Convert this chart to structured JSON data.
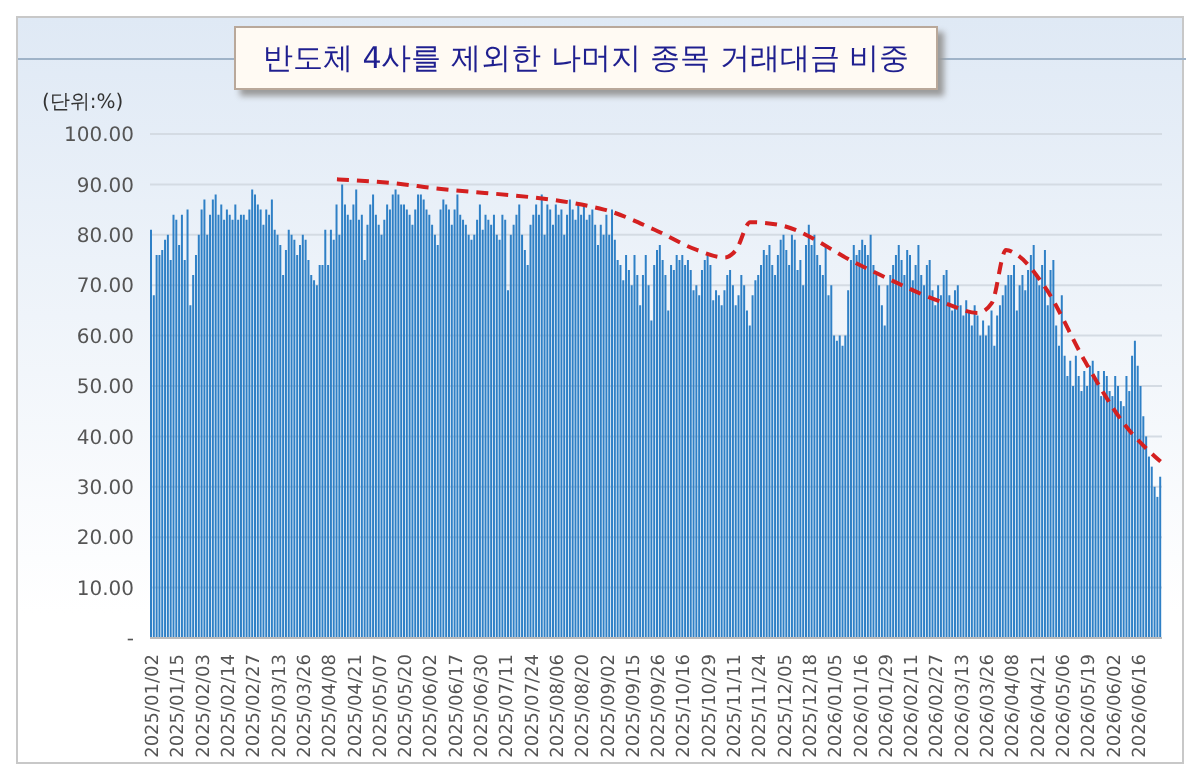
{
  "chart_data": {
    "type": "bar",
    "title": "반도체 4사를 제외한 나머지 종목 거래대금 비중",
    "ylabel": "(단위:%)",
    "categories": [
      "2025/01/02",
      null,
      null,
      null,
      null,
      null,
      null,
      null,
      null,
      "2025/01/15",
      null,
      null,
      null,
      null,
      null,
      null,
      null,
      null,
      "2025/02/03",
      null,
      null,
      null,
      null,
      null,
      null,
      null,
      null,
      "2025/02/14",
      null,
      null,
      null,
      null,
      null,
      null,
      null,
      null,
      "2025/02/27",
      null,
      null,
      null,
      null,
      null,
      null,
      null,
      null,
      "2025/03/13",
      null,
      null,
      null,
      null,
      null,
      null,
      null,
      null,
      "2025/03/26",
      null,
      null,
      null,
      null,
      null,
      null,
      null,
      null,
      "2025/04/08",
      null,
      null,
      null,
      null,
      null,
      null,
      null,
      null,
      "2025/04/21",
      null,
      null,
      null,
      null,
      null,
      null,
      null,
      null,
      "2025/05/07",
      null,
      null,
      null,
      null,
      null,
      null,
      null,
      null,
      "2025/05/20",
      null,
      null,
      null,
      null,
      null,
      null,
      null,
      null,
      "2025/06/02",
      null,
      null,
      null,
      null,
      null,
      null,
      null,
      null,
      "2025/06/17",
      null,
      null,
      null,
      null,
      null,
      null,
      null,
      null,
      "2025/06/30",
      null,
      null,
      null,
      null,
      null,
      null,
      null,
      null,
      "2025/07/11",
      null,
      null,
      null,
      null,
      null,
      null,
      null,
      null,
      "2025/07/24",
      null,
      null,
      null,
      null,
      null,
      null,
      null,
      null,
      "2025/08/06",
      null,
      null,
      null,
      null,
      null,
      null,
      null,
      null,
      "2025/08/20",
      null,
      null,
      null,
      null,
      null,
      null,
      null,
      null,
      "2025/09/02",
      null,
      null,
      null,
      null,
      null,
      null,
      null,
      null,
      "2025/09/15",
      null,
      null,
      null,
      null,
      null,
      null,
      null,
      null,
      "2025/09/26",
      null,
      null,
      null,
      null,
      null,
      null,
      null,
      null,
      "2025/10/16",
      null,
      null,
      null,
      null,
      null,
      null,
      null,
      null,
      "2025/10/29",
      null,
      null,
      null,
      null,
      null,
      null,
      null,
      null,
      "2025/11/11",
      null,
      null,
      null,
      null,
      null,
      null,
      null,
      null,
      "2025/11/24",
      null,
      null,
      null,
      null,
      null,
      null,
      null,
      null,
      "2025/12/05",
      null,
      null,
      null,
      null,
      null,
      null,
      null,
      null,
      "2025/12/18",
      null,
      null,
      null,
      null,
      null,
      null,
      null,
      null,
      "2026/01/05",
      null,
      null,
      null,
      null,
      null,
      null,
      null,
      null,
      "2026/01/16",
      null,
      null,
      null,
      null,
      null,
      null,
      null,
      null,
      "2026/01/29",
      null,
      null,
      null,
      null,
      null,
      null,
      null,
      null,
      "2026/02/11",
      null,
      null,
      null,
      null,
      null,
      null,
      null,
      null,
      "2026/02/27",
      null,
      null,
      null,
      null,
      null,
      null,
      null,
      null,
      "2026/03/13",
      null,
      null,
      null,
      null,
      null,
      null,
      null,
      null,
      "2026/03/26",
      null,
      null,
      null,
      null,
      null,
      null,
      null,
      null,
      "2026/04/08",
      null,
      null,
      null,
      null,
      null,
      null,
      null,
      null,
      "2026/04/21",
      null,
      null,
      null,
      null,
      null,
      null,
      null,
      null,
      "2026/05/06",
      null,
      null,
      null,
      null,
      null,
      null,
      null,
      null,
      "2026/05/19",
      null,
      null,
      null,
      null,
      null,
      null,
      null,
      null,
      "2026/06/02",
      null,
      null,
      null,
      null,
      null,
      null,
      null,
      null,
      "2026/06/16",
      null,
      null,
      null,
      null,
      null,
      null,
      null,
      null
    ],
    "series": [
      {
        "color": "#2f80c6",
        "values": [
          81,
          68,
          76,
          76,
          77,
          79,
          80,
          75,
          84,
          83,
          78,
          84,
          75,
          85,
          66,
          72,
          76,
          80,
          85,
          87,
          80,
          84,
          87,
          88,
          84,
          86,
          83,
          85,
          84,
          83,
          86,
          83,
          84,
          84,
          83,
          85,
          89,
          88,
          86,
          85,
          82,
          85,
          84,
          87,
          81,
          80,
          78,
          72,
          77,
          81,
          80,
          79,
          76,
          78,
          80,
          79,
          75,
          72,
          71,
          70,
          74,
          74,
          81,
          74,
          81,
          79,
          86,
          80,
          90,
          86,
          84,
          83,
          86,
          89,
          83,
          84,
          75,
          82,
          86,
          88,
          84,
          82,
          80,
          83,
          86,
          85,
          88,
          89,
          88,
          86,
          86,
          85,
          84,
          82,
          85,
          88,
          88,
          87,
          85,
          84,
          82,
          80,
          78,
          85,
          87,
          86,
          85,
          82,
          85,
          88,
          84,
          83,
          82,
          80,
          79,
          80,
          83,
          86,
          81,
          84,
          83,
          82,
          84,
          80,
          79,
          84,
          83,
          69,
          80,
          82,
          84,
          86,
          80,
          77,
          74,
          82,
          84,
          86,
          84,
          88,
          80,
          86,
          85,
          82,
          86,
          84,
          85,
          80,
          84,
          87,
          85,
          83,
          86,
          84,
          86,
          83,
          84,
          85,
          82,
          78,
          82,
          80,
          84,
          80,
          85,
          79,
          75,
          74,
          71,
          76,
          73,
          70,
          76,
          72,
          66,
          72,
          76,
          70,
          63,
          74,
          77,
          78,
          75,
          72,
          65,
          74,
          73,
          76,
          75,
          76,
          74,
          75,
          73,
          69,
          70,
          68,
          73,
          75,
          76,
          74,
          67,
          69,
          68,
          66,
          69,
          72,
          73,
          70,
          66,
          68,
          72,
          70,
          65,
          62,
          68,
          71,
          72,
          74,
          77,
          76,
          78,
          74,
          72,
          76,
          79,
          80,
          77,
          74,
          80,
          79,
          73,
          75,
          70,
          78,
          82,
          78,
          80,
          76,
          74,
          72,
          78,
          68,
          70,
          60,
          59,
          60,
          58,
          60,
          69,
          75,
          78,
          76,
          77,
          79,
          78,
          76,
          80,
          74,
          72,
          70,
          66,
          62,
          70,
          72,
          74,
          76,
          78,
          75,
          72,
          77,
          76,
          71,
          74,
          78,
          72,
          70,
          74,
          75,
          69,
          66,
          70,
          68,
          72,
          73,
          68,
          65,
          69,
          70,
          66,
          64,
          67,
          65,
          62,
          66,
          64,
          60,
          63,
          60,
          62,
          65,
          58,
          64,
          66,
          68,
          70,
          72,
          72,
          74,
          65,
          70,
          72,
          69,
          73,
          76,
          78,
          72,
          70,
          74,
          77,
          66,
          73,
          75,
          62,
          58,
          68,
          56,
          52,
          55,
          50,
          56,
          52,
          49,
          53,
          50,
          54,
          55,
          51,
          53,
          48,
          53,
          52,
          49,
          48,
          52,
          50,
          47,
          46,
          52,
          49,
          56,
          59,
          54,
          50,
          44,
          40,
          36,
          34,
          30,
          28,
          32
        ]
      },
      {
        "type": "line",
        "color": "#d42020",
        "line_style": "dashed",
        "marker": "none",
        "values": [
          null,
          null,
          null,
          null,
          null,
          null,
          null,
          null,
          null,
          null,
          null,
          null,
          null,
          null,
          null,
          null,
          null,
          null,
          null,
          null,
          null,
          null,
          null,
          null,
          null,
          null,
          null,
          null,
          null,
          null,
          null,
          null,
          null,
          null,
          null,
          null,
          null,
          null,
          null,
          null,
          null,
          null,
          null,
          null,
          null,
          null,
          null,
          null,
          null,
          null,
          null,
          null,
          null,
          null,
          null,
          null,
          null,
          null,
          null,
          null,
          null,
          null,
          null,
          null,
          null,
          null,
          91,
          null,
          null,
          null,
          null,
          null,
          null,
          null,
          null,
          null,
          null,
          null,
          null,
          null,
          null,
          null,
          null,
          null,
          null,
          null,
          null,
          null,
          null,
          null,
          90,
          null,
          null,
          null,
          null,
          null,
          null,
          89.5,
          null,
          null,
          null,
          null,
          null,
          null,
          null,
          null,
          null,
          null,
          null,
          null,
          null,
          null,
          null,
          null,
          null,
          null,
          null,
          null,
          null,
          null,
          null,
          null,
          null,
          null,
          null,
          null,
          null,
          null,
          null,
          null,
          null,
          null,
          null,
          null,
          null,
          null,
          null,
          null,
          null,
          null,
          null,
          null,
          null,
          null,
          null,
          null,
          null,
          null,
          null,
          null,
          null,
          null,
          null,
          null,
          null,
          null,
          null,
          null,
          null,
          null,
          null,
          85,
          null,
          null,
          null,
          null,
          null,
          null,
          null,
          null,
          null,
          null,
          null,
          null,
          null,
          null,
          null,
          null,
          null,
          81,
          null,
          null,
          null,
          null,
          null,
          null,
          null,
          null,
          null,
          null,
          null,
          null,
          null,
          null,
          77,
          null,
          null,
          null,
          null,
          null,
          null,
          null,
          null,
          null,
          75.5,
          null,
          null,
          null,
          77,
          null,
          null,
          null,
          null,
          82.5,
          null,
          null,
          null,
          null,
          null,
          null,
          null,
          null,
          null,
          82,
          null,
          null,
          null,
          null,
          null,
          null,
          null,
          null,
          null,
          null,
          null,
          null,
          null,
          null,
          null,
          null,
          null,
          null,
          null,
          null,
          null,
          null,
          null,
          null,
          null,
          null,
          null,
          null,
          74,
          null,
          null,
          null,
          null,
          null,
          null,
          null,
          null,
          null,
          null,
          null,
          null,
          null,
          null,
          null,
          null,
          null,
          null,
          null,
          null,
          null,
          null,
          null,
          null,
          null,
          null,
          null,
          null,
          null,
          66.5,
          null,
          null,
          null,
          null,
          null,
          null,
          null,
          null,
          null,
          null,
          null,
          64.5,
          null,
          null,
          null,
          null,
          66.5,
          null,
          null,
          null,
          null,
          77,
          null,
          null,
          null,
          76,
          null,
          null,
          null,
          null,
          null,
          null,
          null,
          null,
          null,
          69.5,
          null,
          null,
          null,
          null,
          null,
          null,
          null,
          null,
          null,
          null,
          null,
          null,
          null,
          55,
          null,
          null,
          null,
          null,
          null,
          null,
          null,
          null,
          null,
          null,
          null,
          null,
          null,
          42.5,
          null,
          null,
          null,
          null,
          null,
          null,
          null,
          null,
          null,
          null,
          null,
          null,
          35
        ]
      }
    ],
    "ylim": [
      0,
      100
    ],
    "yticks": [
      {
        "value": 0,
        "label": "-"
      },
      {
        "value": 10,
        "label": "10.00"
      },
      {
        "value": 20,
        "label": "20.00"
      },
      {
        "value": 30,
        "label": "30.00"
      },
      {
        "value": 40,
        "label": "40.00"
      },
      {
        "value": 50,
        "label": "50.00"
      },
      {
        "value": 60,
        "label": "60.00"
      },
      {
        "value": 70,
        "label": "70.00"
      },
      {
        "value": 80,
        "label": "80.00"
      },
      {
        "value": 90,
        "label": "90.00"
      },
      {
        "value": 100,
        "label": "100.00"
      }
    ],
    "grid": "y"
  }
}
